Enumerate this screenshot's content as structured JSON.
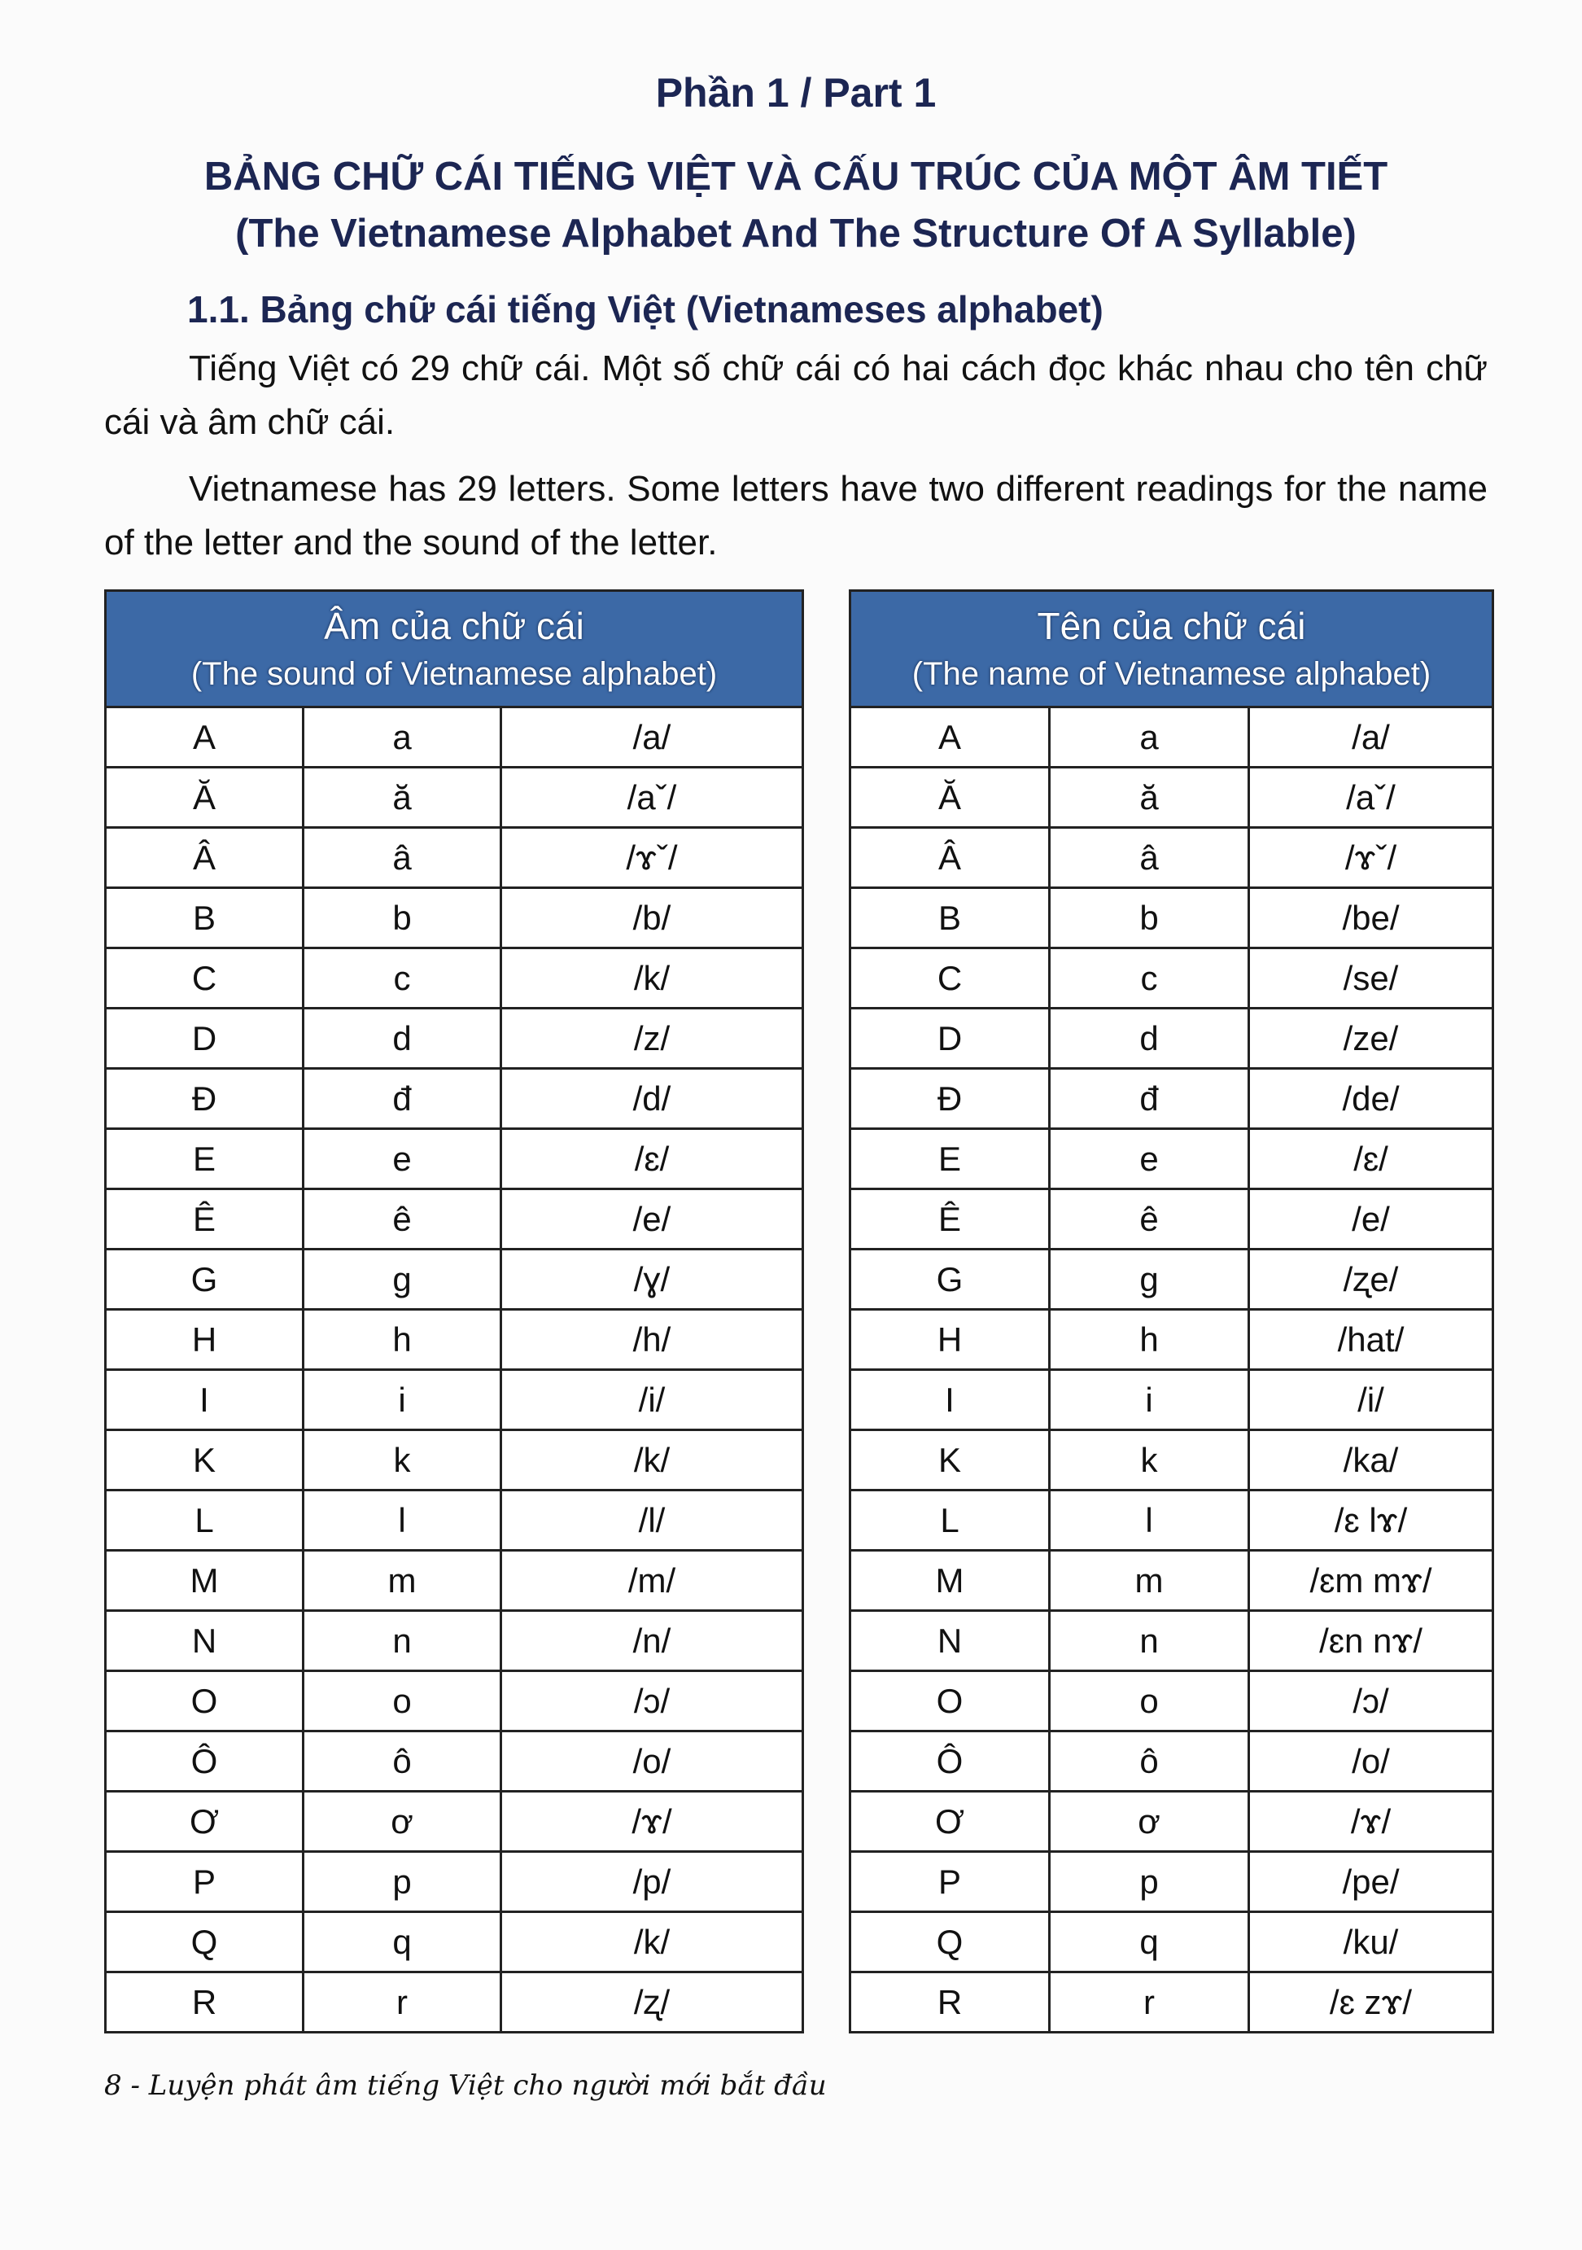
{
  "page": {
    "part_title": "Phần 1 / Part 1",
    "heading_vi": "BẢNG CHỮ CÁI TIẾNG VIỆT VÀ CẤU TRÚC CỦA MỘT ÂM TIẾT",
    "heading_en": "(The Vietnamese Alphabet And The Structure Of A Syllable)",
    "section_title": "1.1. Bảng chữ cái tiếng Việt (Vietnameses alphabet)",
    "paragraph_vi": "Tiếng Việt có 29 chữ cái. Một số chữ cái có hai cách đọc khác nhau cho tên chữ cái và âm chữ cái.",
    "paragraph_en": "Vietnamese has 29 letters. Some letters have two different readings for the name of the letter and the sound of the letter.",
    "footer": "8 - Luyện phát âm tiếng Việt cho người mới bắt đầu"
  },
  "sound_table": {
    "title_vi": "Âm của chữ cái",
    "title_en": "(The sound of Vietnamese alphabet)",
    "rows": [
      [
        "A",
        "a",
        "/a/"
      ],
      [
        "Ă",
        "ă",
        "/aˇ/"
      ],
      [
        "Â",
        "â",
        "/ɤˇ/"
      ],
      [
        "B",
        "b",
        "/b/"
      ],
      [
        "C",
        "c",
        "/k/"
      ],
      [
        "D",
        "d",
        "/z/"
      ],
      [
        "Đ",
        "đ",
        "/d/"
      ],
      [
        "E",
        "e",
        "/ɛ/"
      ],
      [
        "Ê",
        "ê",
        "/e/"
      ],
      [
        "G",
        "g",
        "/ɣ/"
      ],
      [
        "H",
        "h",
        "/h/"
      ],
      [
        "I",
        "i",
        "/i/"
      ],
      [
        "K",
        "k",
        "/k/"
      ],
      [
        "L",
        "l",
        "/l/"
      ],
      [
        "M",
        "m",
        "/m/"
      ],
      [
        "N",
        "n",
        "/n/"
      ],
      [
        "O",
        "o",
        "/ɔ/"
      ],
      [
        "Ô",
        "ô",
        "/o/"
      ],
      [
        "Ơ",
        "ơ",
        "/ɤ/"
      ],
      [
        "P",
        "p",
        "/p/"
      ],
      [
        "Q",
        "q",
        "/k/"
      ],
      [
        "R",
        "r",
        "/ʐ/"
      ]
    ]
  },
  "name_table": {
    "title_vi": "Tên của chữ cái",
    "title_en": "(The name of Vietnamese alphabet)",
    "rows": [
      [
        "A",
        "a",
        "/a/"
      ],
      [
        "Ă",
        "ă",
        "/aˇ/"
      ],
      [
        "Â",
        "â",
        "/ɤˇ/"
      ],
      [
        "B",
        "b",
        "/be/"
      ],
      [
        "C",
        "c",
        "/se/"
      ],
      [
        "D",
        "d",
        "/ze/"
      ],
      [
        "Đ",
        "đ",
        "/de/"
      ],
      [
        "E",
        "e",
        "/ɛ/"
      ],
      [
        "Ê",
        "ê",
        "/e/"
      ],
      [
        "G",
        "g",
        "/ʐe/"
      ],
      [
        "H",
        "h",
        "/hat/"
      ],
      [
        "I",
        "i",
        "/i/"
      ],
      [
        "K",
        "k",
        "/ka/"
      ],
      [
        "L",
        "l",
        "/ɛ lɤ/"
      ],
      [
        "M",
        "m",
        "/ɛm mɤ/"
      ],
      [
        "N",
        "n",
        "/ɛn nɤ/"
      ],
      [
        "O",
        "o",
        "/ɔ/"
      ],
      [
        "Ô",
        "ô",
        "/o/"
      ],
      [
        "Ơ",
        "ơ",
        "/ɤ/"
      ],
      [
        "P",
        "p",
        "/pe/"
      ],
      [
        "Q",
        "q",
        "/ku/"
      ],
      [
        "R",
        "r",
        "/ɛ zɤ/"
      ]
    ]
  },
  "colors": {
    "header_fill": "#3c69a6",
    "heading_text": "#1c2653"
  }
}
